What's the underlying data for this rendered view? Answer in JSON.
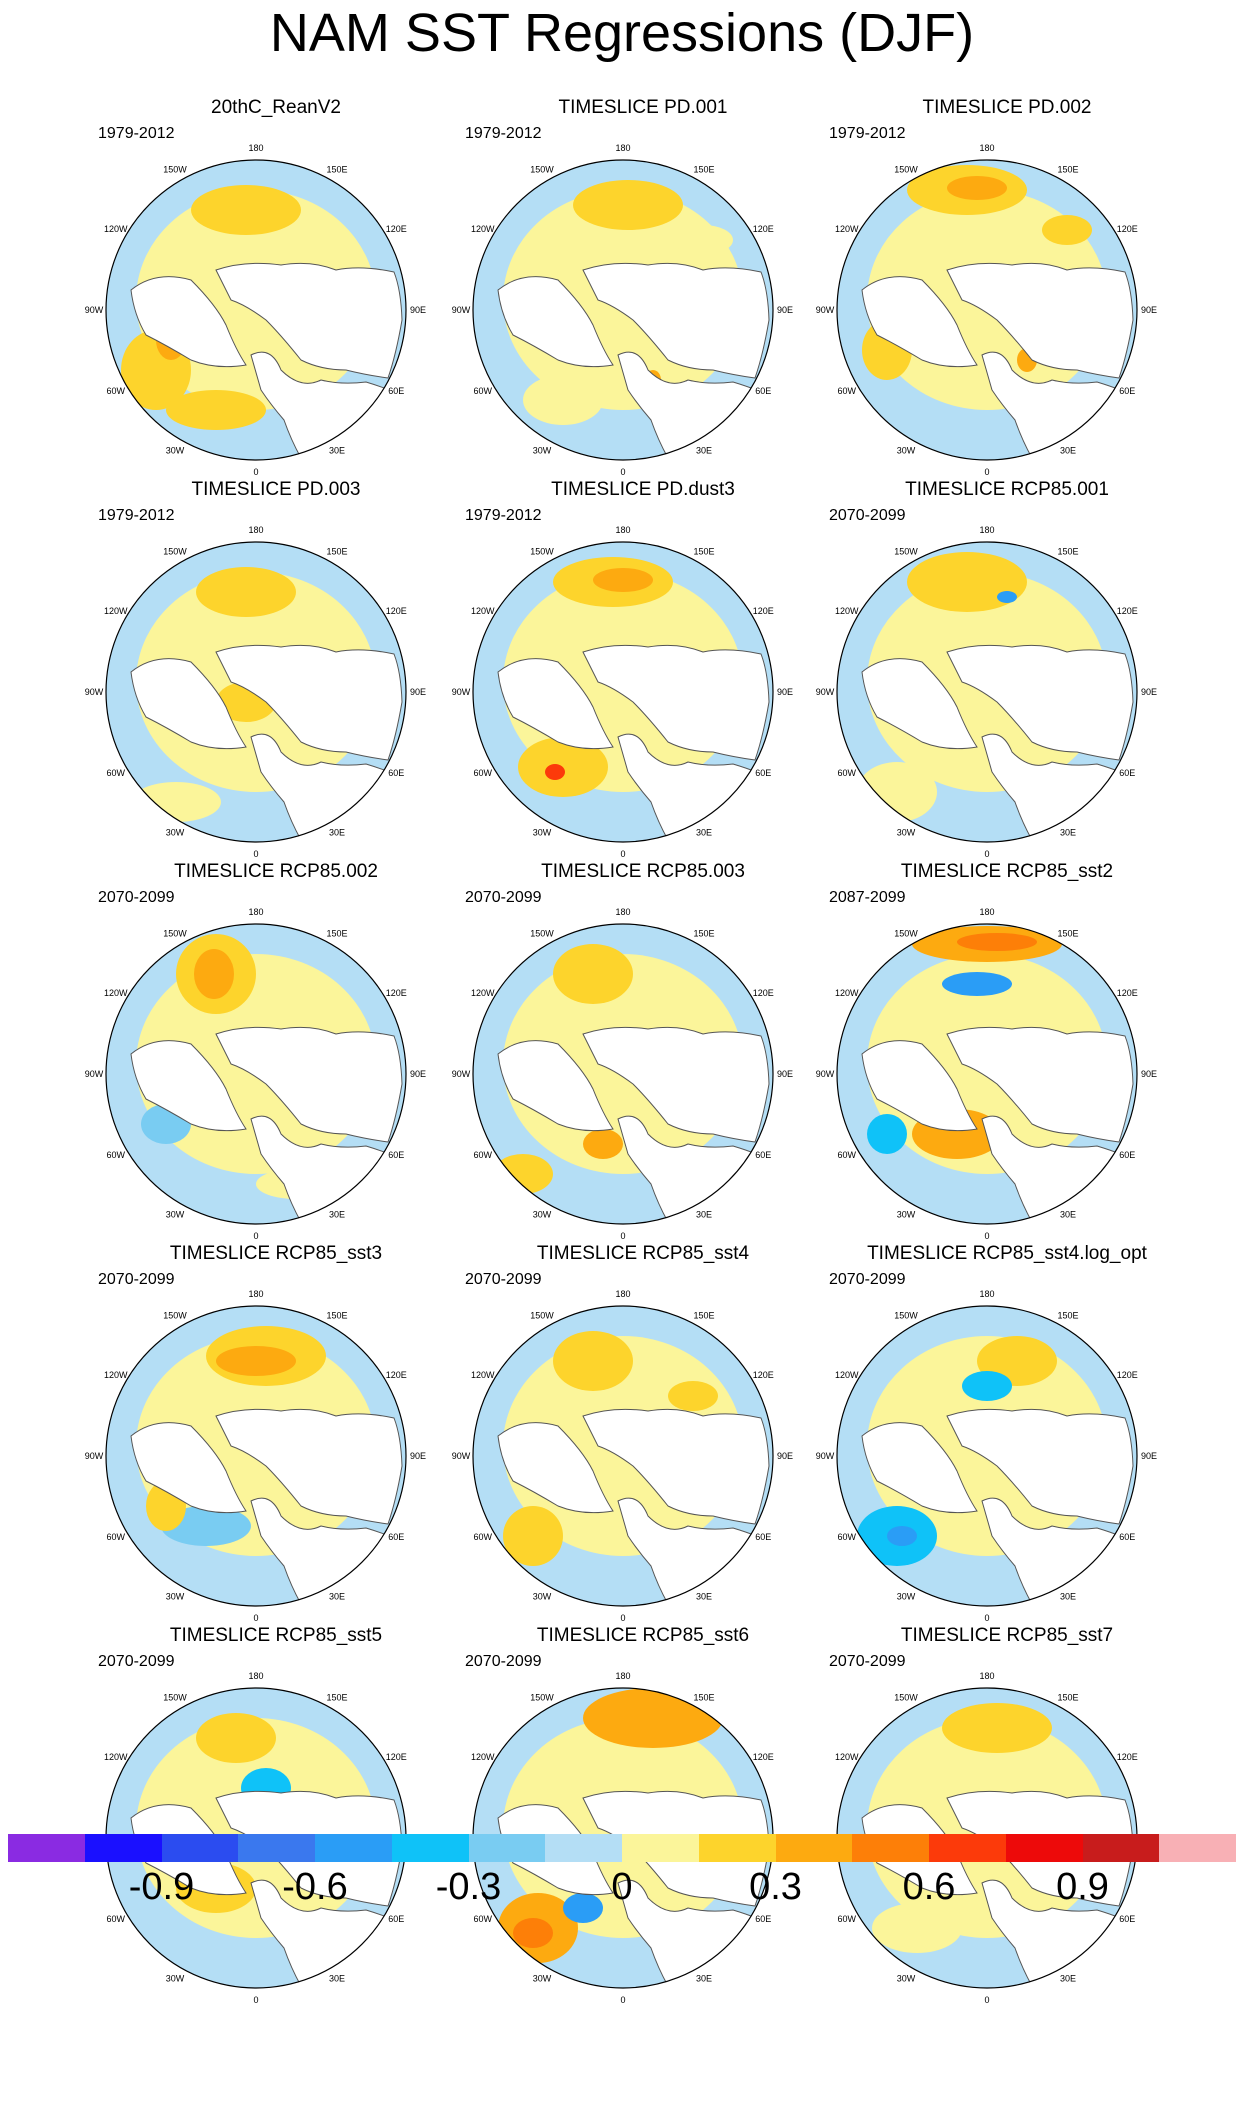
{
  "title": "NAM SST Regressions (DJF)",
  "panels": [
    {
      "title": "20thC_ReanV2",
      "period": "1979-2012"
    },
    {
      "title": "TIMESLICE PD.001",
      "period": "1979-2012"
    },
    {
      "title": "TIMESLICE PD.002",
      "period": "1979-2012"
    },
    {
      "title": "TIMESLICE PD.003",
      "period": "1979-2012"
    },
    {
      "title": "TIMESLICE PD.dust3",
      "period": "1979-2012"
    },
    {
      "title": "TIMESLICE RCP85.001",
      "period": "2070-2099"
    },
    {
      "title": "TIMESLICE RCP85.002",
      "period": "2070-2099"
    },
    {
      "title": "TIMESLICE RCP85.003",
      "period": "2070-2099"
    },
    {
      "title": "TIMESLICE RCP85_sst2",
      "period": "2087-2099"
    },
    {
      "title": "TIMESLICE RCP85_sst3",
      "period": "2070-2099"
    },
    {
      "title": "TIMESLICE RCP85_sst4",
      "period": "2070-2099"
    },
    {
      "title": "TIMESLICE RCP85_sst4.log_opt",
      "period": "2070-2099"
    },
    {
      "title": "TIMESLICE RCP85_sst5",
      "period": "2070-2099"
    },
    {
      "title": "TIMESLICE RCP85_sst6",
      "period": "2070-2099"
    },
    {
      "title": "TIMESLICE RCP85_sst7",
      "period": "2070-2099"
    }
  ],
  "longitude_labels": [
    "180",
    "150E",
    "120E",
    "90E",
    "60E",
    "30E",
    "0",
    "30W",
    "60W",
    "90W",
    "120W",
    "150W"
  ],
  "colorbar": {
    "colors": [
      "#8a2be2",
      "#1a10ff",
      "#2b4cf0",
      "#3a78ee",
      "#2a9df6",
      "#0fc2f8",
      "#79ccf2",
      "#b4def5",
      "#fbf59a",
      "#fdd42c",
      "#fdaa10",
      "#fd7f08",
      "#fc3a0a",
      "#ed0a0a",
      "#c81c1c",
      "#f8b0b5"
    ],
    "tick_labels": [
      "-0.9",
      "-0.6",
      "-0.3",
      "0",
      "0.3",
      "0.6",
      "0.9"
    ]
  }
}
